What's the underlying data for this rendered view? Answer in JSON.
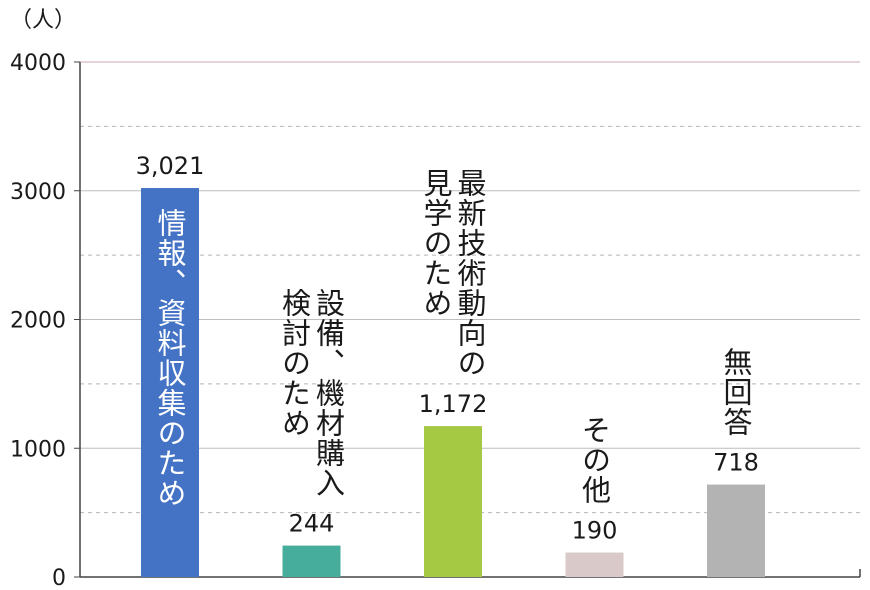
{
  "chart_data": {
    "type": "bar",
    "unit_label": "（人）",
    "categories": [
      "情報、資料収集のため",
      "設備、機材購入検討のため",
      "最新技術動向の見学のため",
      "その他",
      "無回答"
    ],
    "category_lines": [
      [
        "情報、資料収集のため"
      ],
      [
        "設備、機材購入",
        "検討のため"
      ],
      [
        "最新技術動向の",
        "見学のため"
      ],
      [
        "その他"
      ],
      [
        "無回答"
      ]
    ],
    "values": [
      3021,
      244,
      1172,
      190,
      718
    ],
    "value_labels": [
      "3,021",
      "244",
      "1,172",
      "190",
      "718"
    ],
    "colors": [
      "#4472c4",
      "#46ad9d",
      "#a6c944",
      "#d9c9c9",
      "#b3b3b3"
    ],
    "ylim": [
      0,
      4000
    ],
    "yticks": [
      0,
      1000,
      2000,
      3000,
      4000
    ],
    "minor_gridlines": [
      500,
      1500,
      2500,
      3500
    ],
    "grid": true,
    "legend": "none"
  }
}
